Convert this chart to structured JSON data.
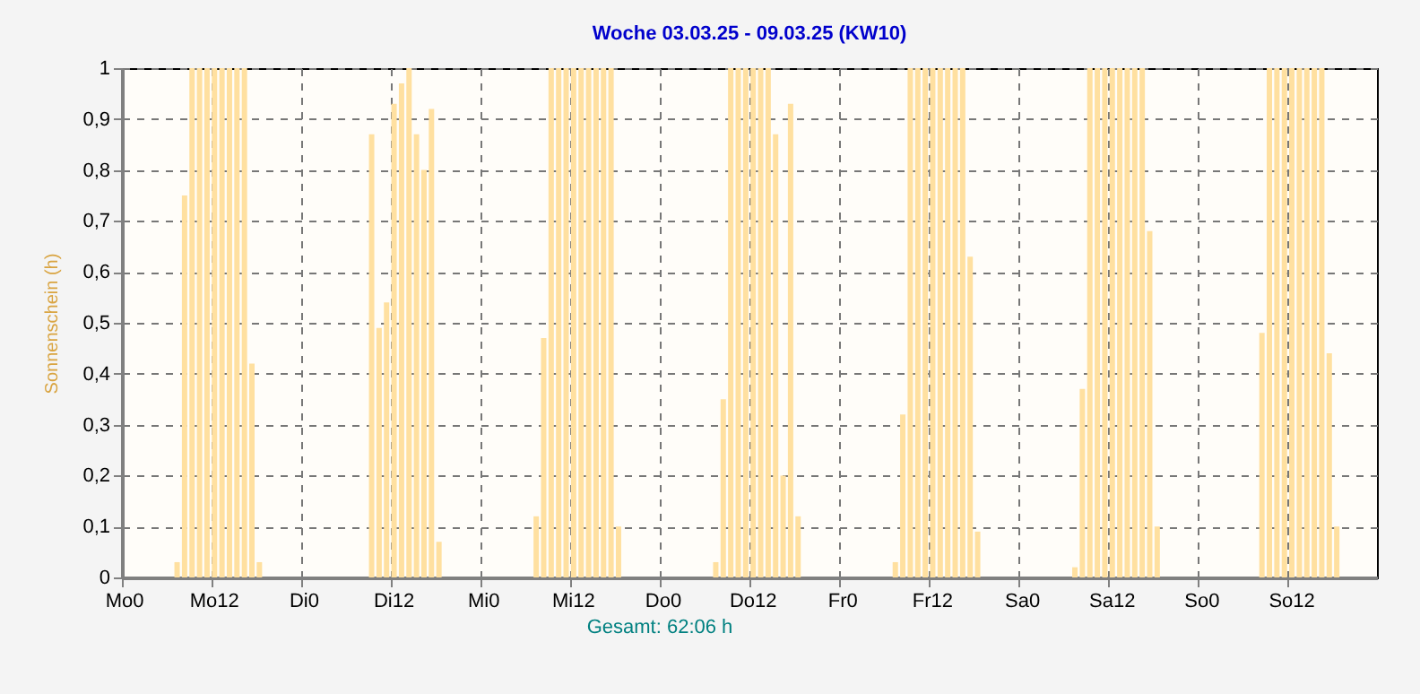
{
  "chart_data": {
    "type": "bar",
    "title": "Woche 03.03.25 - 09.03.25 (KW10)",
    "ylabel": "Sonnenschein  (h)",
    "annotations": [
      "Gesamt: 62:06 h"
    ],
    "categories": [
      "Mo0",
      null,
      null,
      null,
      null,
      null,
      null,
      null,
      null,
      null,
      null,
      null,
      "Mo12",
      null,
      null,
      null,
      null,
      null,
      null,
      null,
      null,
      null,
      null,
      null,
      "Di0",
      null,
      null,
      null,
      null,
      null,
      null,
      null,
      null,
      null,
      null,
      null,
      "Di12",
      null,
      null,
      null,
      null,
      null,
      null,
      null,
      null,
      null,
      null,
      null,
      "Mi0",
      null,
      null,
      null,
      null,
      null,
      null,
      null,
      null,
      null,
      null,
      null,
      "Mi12",
      null,
      null,
      null,
      null,
      null,
      null,
      null,
      null,
      null,
      null,
      null,
      "Do0",
      null,
      null,
      null,
      null,
      null,
      null,
      null,
      null,
      null,
      null,
      null,
      "Do12",
      null,
      null,
      null,
      null,
      null,
      null,
      null,
      null,
      null,
      null,
      null,
      "Fr0",
      null,
      null,
      null,
      null,
      null,
      null,
      null,
      null,
      null,
      null,
      null,
      "Fr12",
      null,
      null,
      null,
      null,
      null,
      null,
      null,
      null,
      null,
      null,
      null,
      "Sa0",
      null,
      null,
      null,
      null,
      null,
      null,
      null,
      null,
      null,
      null,
      null,
      "Sa12",
      null,
      null,
      null,
      null,
      null,
      null,
      null,
      null,
      null,
      null,
      null,
      "So0",
      null,
      null,
      null,
      null,
      null,
      null,
      null,
      null,
      null,
      null,
      null,
      "So12",
      null,
      null,
      null,
      null,
      null,
      null,
      null,
      null,
      null,
      null,
      null
    ],
    "values": [
      0,
      0,
      0,
      0,
      0,
      0,
      0,
      0.03,
      0.75,
      1,
      1,
      1,
      1,
      1,
      1,
      1,
      1,
      0.42,
      0.03,
      0,
      0,
      0,
      0,
      0,
      0,
      0,
      0,
      0,
      0,
      0,
      0,
      0,
      0,
      0.87,
      0.49,
      0.54,
      0.93,
      0.97,
      1,
      0.87,
      0.8,
      0.92,
      0.07,
      0,
      0,
      0,
      0,
      0,
      0,
      0,
      0,
      0,
      0,
      0,
      0,
      0.12,
      0.47,
      1,
      1,
      1,
      1,
      1,
      1,
      1,
      1,
      1,
      0.1,
      0,
      0,
      0,
      0,
      0,
      0,
      0,
      0,
      0,
      0,
      0,
      0,
      0.03,
      0.35,
      1,
      1,
      1,
      1,
      1,
      1,
      0.87,
      0.2,
      0.93,
      0.12,
      0,
      0,
      0,
      0,
      0,
      0,
      0,
      0,
      0,
      0,
      0,
      0,
      0.03,
      0.32,
      1,
      1,
      1,
      1,
      1,
      1,
      1,
      1,
      0.63,
      0.09,
      0,
      0,
      0,
      0,
      0,
      0,
      0,
      0,
      0,
      0,
      0,
      0,
      0.02,
      0.37,
      1,
      1,
      1,
      1,
      1,
      1,
      1,
      1,
      0.68,
      0.1,
      0,
      0,
      0,
      0,
      0,
      0,
      0,
      0,
      0,
      0,
      0,
      0,
      0,
      0.48,
      1,
      1,
      1,
      1,
      1,
      1,
      1,
      1,
      0.44,
      0.1,
      0,
      0,
      0,
      0,
      0
    ],
    "color": "#ffe0a0",
    "ylim": [
      0,
      1
    ],
    "yticks": [
      0,
      {
        "value": 0.1,
        "label": "0,1"
      },
      {
        "value": 0.2,
        "label": "0,2"
      },
      {
        "value": 0.3,
        "label": "0,3"
      },
      {
        "value": 0.4,
        "label": "0,4"
      },
      {
        "value": 0.5,
        "label": "0,5"
      },
      {
        "value": 0.6,
        "label": "0,6"
      },
      {
        "value": 0.7,
        "label": "0,7"
      },
      {
        "value": 0.8,
        "label": "0,8"
      },
      {
        "value": 0.9,
        "label": "0,9"
      },
      1
    ],
    "grid": true
  }
}
